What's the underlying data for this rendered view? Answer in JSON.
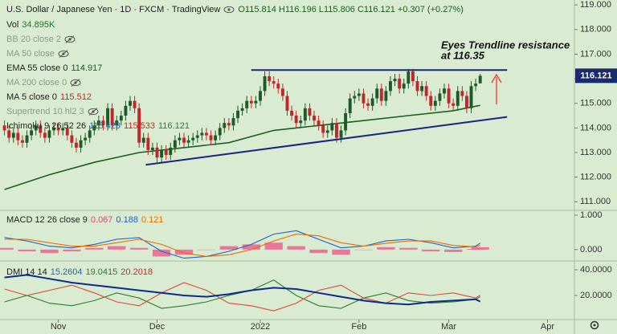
{
  "chart_data": [
    {
      "type": "candlestick",
      "title": "U.S. Dollar / Japanese Yen · 1D · FXCM · TradingView",
      "ohlc_label": "O115.814 H116.196 L115.806 C116.121 +0.307 (+0.27%)",
      "legend": [
        {
          "label": "Vol",
          "values": [
            "34.895K"
          ],
          "colors": [
            "#1b7a2e"
          ]
        },
        {
          "label": "BB 20 close 2",
          "hidden": true
        },
        {
          "label": "MA 50 close",
          "hidden": true
        },
        {
          "label": "EMA 55 close 0",
          "values": [
            114.917
          ],
          "colors": [
            "#1b5e20"
          ]
        },
        {
          "label": "MA 200 close 0",
          "hidden": true
        },
        {
          "label": "MA 5 close 0",
          "values": [
            115.512
          ],
          "colors": [
            "#c62828"
          ]
        },
        {
          "label": "Supertrend 10 hl2 3",
          "hidden": true
        },
        {
          "label": "Ichimoku 9 26 52 26",
          "values": [
            115.423,
            115.533,
            116.121
          ],
          "colors": [
            "#1e63c4",
            "#c62828",
            "#2e7d32"
          ]
        }
      ],
      "annotation": [
        "Eyes Trendline resistance",
        "at 116.35"
      ],
      "colors": {
        "up": "#1d5a27",
        "down": "#c0272d"
      },
      "open": [
        114.1,
        113.9,
        113.6,
        113.8,
        113.5,
        113.4,
        113.7,
        113.9,
        114.1,
        113.8,
        113.6,
        113.9,
        114.0,
        113.9,
        114.0,
        113.7,
        113.4,
        113.2,
        113.5,
        113.6,
        113.9,
        114.1,
        114.3,
        114.1,
        114.8,
        114.1,
        114.3,
        114.5,
        114.9,
        115.1,
        114.8,
        113.4,
        113.6,
        113.1,
        113.2,
        112.8,
        113.1,
        112.9,
        113.2,
        113.5,
        113.6,
        113.4,
        113.5,
        113.6,
        113.7,
        113.8,
        113.7,
        113.5,
        113.7,
        114.0,
        114.2,
        114.1,
        114.4,
        114.7,
        114.8,
        115.1,
        115.0,
        115.1,
        115.5,
        116.1,
        115.9,
        115.8,
        115.6,
        115.3,
        114.7,
        114.5,
        114.2,
        114.3,
        114.8,
        114.5,
        114.3,
        114.1,
        113.8,
        113.9,
        114.2,
        113.6,
        113.9,
        114.6,
        115.2,
        115.3,
        115.4,
        115.0,
        114.9,
        115.2,
        115.6,
        115.1,
        115.5,
        115.9,
        116.0,
        115.6,
        115.8,
        116.3,
        115.9,
        115.5,
        115.7,
        115.3,
        114.9,
        115.1,
        115.4,
        115.6,
        115.0,
        114.9,
        115.5,
        115.3,
        114.8,
        115.7,
        115.814
      ],
      "high": [
        114.3,
        114.1,
        114.0,
        114.0,
        113.7,
        113.9,
        114.1,
        114.3,
        114.3,
        114.0,
        114.1,
        114.2,
        114.2,
        114.2,
        114.2,
        113.9,
        113.6,
        113.7,
        113.8,
        114.1,
        114.3,
        114.5,
        114.5,
        115.0,
        115.0,
        114.5,
        114.7,
        115.1,
        115.3,
        115.3,
        115.0,
        113.8,
        113.8,
        113.4,
        113.4,
        113.3,
        113.3,
        113.4,
        113.7,
        113.8,
        113.8,
        113.7,
        113.8,
        113.9,
        114.0,
        114.0,
        113.9,
        113.9,
        114.2,
        114.4,
        114.4,
        114.6,
        114.9,
        115.0,
        115.3,
        115.3,
        115.3,
        115.7,
        116.3,
        116.3,
        116.1,
        116.0,
        115.8,
        115.5,
        114.9,
        114.7,
        114.5,
        115.0,
        115.0,
        114.7,
        114.5,
        114.3,
        114.1,
        114.4,
        114.4,
        114.1,
        114.8,
        115.4,
        115.5,
        115.6,
        115.6,
        115.2,
        115.4,
        115.8,
        115.8,
        115.7,
        116.1,
        116.2,
        116.2,
        116.0,
        116.4,
        116.4,
        116.1,
        115.9,
        115.9,
        115.5,
        115.3,
        115.6,
        115.8,
        115.8,
        115.2,
        115.7,
        115.7,
        115.5,
        115.9,
        116.0,
        116.196
      ],
      "low": [
        113.7,
        113.4,
        113.4,
        113.3,
        113.2,
        113.2,
        113.5,
        113.7,
        113.6,
        113.4,
        113.4,
        113.7,
        113.7,
        113.7,
        113.5,
        113.2,
        113.0,
        113.0,
        113.3,
        113.4,
        113.7,
        113.9,
        113.9,
        113.9,
        113.9,
        113.9,
        114.1,
        114.3,
        114.7,
        114.6,
        113.2,
        113.2,
        112.9,
        112.9,
        112.6,
        112.6,
        112.7,
        112.7,
        113.0,
        113.3,
        113.2,
        113.2,
        113.3,
        113.4,
        113.5,
        113.5,
        113.3,
        113.3,
        113.5,
        113.8,
        113.9,
        113.9,
        114.2,
        114.5,
        114.6,
        114.8,
        114.8,
        114.9,
        115.3,
        115.7,
        115.6,
        115.4,
        115.1,
        114.5,
        114.3,
        114.0,
        114.0,
        114.1,
        114.3,
        114.1,
        113.9,
        113.6,
        113.6,
        113.7,
        113.4,
        113.4,
        113.7,
        114.4,
        115.0,
        115.1,
        114.8,
        114.7,
        114.7,
        115.0,
        114.9,
        114.9,
        115.3,
        115.7,
        115.4,
        115.4,
        115.6,
        115.7,
        115.3,
        115.3,
        115.1,
        114.7,
        114.7,
        114.9,
        115.2,
        114.8,
        114.7,
        114.7,
        115.1,
        114.6,
        114.6,
        115.5,
        115.806
      ],
      "close": [
        113.9,
        113.6,
        113.8,
        113.5,
        113.4,
        113.7,
        113.9,
        114.1,
        113.8,
        113.6,
        113.9,
        114.0,
        113.9,
        114.0,
        113.7,
        113.4,
        113.2,
        113.5,
        113.6,
        113.9,
        114.1,
        114.3,
        114.1,
        114.8,
        114.1,
        114.3,
        114.5,
        114.9,
        115.1,
        114.8,
        113.4,
        113.6,
        113.1,
        113.2,
        112.8,
        113.1,
        112.9,
        113.2,
        113.5,
        113.6,
        113.4,
        113.5,
        113.6,
        113.7,
        113.8,
        113.7,
        113.5,
        113.7,
        114.0,
        114.2,
        114.1,
        114.4,
        114.7,
        114.8,
        115.1,
        115.0,
        115.1,
        115.5,
        116.1,
        115.9,
        115.8,
        115.6,
        115.3,
        114.7,
        114.5,
        114.2,
        114.3,
        114.8,
        114.5,
        114.3,
        114.1,
        113.8,
        113.9,
        114.2,
        113.6,
        113.9,
        114.6,
        115.2,
        115.3,
        115.4,
        115.0,
        114.9,
        115.2,
        115.6,
        115.1,
        115.5,
        115.9,
        116.0,
        115.6,
        115.8,
        116.3,
        115.9,
        115.5,
        115.7,
        115.3,
        114.9,
        115.1,
        115.4,
        115.6,
        115.0,
        114.9,
        115.5,
        115.3,
        114.8,
        115.7,
        115.8,
        116.121
      ],
      "overlays": [
        {
          "color": "#1b5e20",
          "x": [
            0,
            10,
            20,
            30,
            40,
            50,
            60,
            70,
            80,
            90,
            100,
            106
          ],
          "values": [
            111.5,
            112.1,
            112.6,
            113.0,
            113.2,
            113.4,
            113.9,
            114.1,
            114.3,
            114.5,
            114.7,
            114.917
          ]
        }
      ],
      "trendlines": [
        {
          "color": "#1a237e",
          "x": [
            55,
            112
          ],
          "values": [
            116.35,
            116.35
          ]
        },
        {
          "color": "#1a237e",
          "x": [
            31.5,
            112
          ],
          "values": [
            112.5,
            114.45
          ]
        }
      ],
      "xlim": [
        -1,
        127
      ],
      "xticks": [
        {
          "value": 12,
          "label": "Nov"
        },
        {
          "value": 34,
          "label": "Dec"
        },
        {
          "value": 57,
          "label": "2022"
        },
        {
          "value": 79,
          "label": "Feb"
        },
        {
          "value": 99,
          "label": "Mar"
        },
        {
          "value": 121,
          "label": "Apr"
        }
      ],
      "ylim": [
        110.65,
        119.2
      ],
      "yticks": [
        {
          "value": 119,
          "label": "119.000"
        },
        {
          "value": 118,
          "label": "118.000"
        },
        {
          "value": 117,
          "label": "117.000"
        },
        {
          "value": 116,
          "label": "116.000"
        },
        {
          "value": 115,
          "label": "115.000"
        },
        {
          "value": 114,
          "label": "114.000"
        },
        {
          "value": 113,
          "label": "113.000"
        },
        {
          "value": 112,
          "label": "112.000"
        },
        {
          "value": 111,
          "label": "111.000"
        }
      ]
    },
    {
      "type": "line",
      "legend": [
        {
          "label": "MACD 12 26 close 9",
          "values": [
            0.067,
            0.188,
            0.121
          ],
          "colors": [
            "#e0407a",
            "#1e63c4",
            "#ef6c00"
          ]
        }
      ],
      "x": [
        0,
        5,
        10,
        15,
        20,
        25,
        30,
        35,
        40,
        45,
        50,
        55,
        60,
        65,
        70,
        75,
        80,
        85,
        90,
        95,
        100,
        105,
        106
      ],
      "series": [
        {
          "style": "histogram",
          "color": "#ec5a8c",
          "values": [
            0.05,
            -0.05,
            -0.1,
            -0.05,
            0.05,
            0.1,
            0.05,
            -0.2,
            -0.15,
            0.0,
            0.1,
            0.15,
            0.2,
            0.1,
            -0.1,
            -0.15,
            0.0,
            0.07,
            0.05,
            -0.05,
            -0.07,
            0.02,
            0.067
          ]
        },
        {
          "color": "#1e63c4",
          "values": [
            0.35,
            0.25,
            0.1,
            0.05,
            0.15,
            0.3,
            0.35,
            -0.05,
            -0.25,
            -0.2,
            -0.05,
            0.15,
            0.45,
            0.55,
            0.3,
            0.05,
            0.1,
            0.25,
            0.3,
            0.2,
            0.05,
            0.1,
            0.188
          ]
        },
        {
          "color": "#ef6c00",
          "values": [
            0.3,
            0.3,
            0.2,
            0.1,
            0.1,
            0.2,
            0.3,
            0.15,
            -0.1,
            -0.2,
            -0.15,
            0.0,
            0.25,
            0.45,
            0.4,
            0.2,
            0.1,
            0.18,
            0.25,
            0.25,
            0.12,
            0.08,
            0.121
          ]
        }
      ],
      "xlim": [
        -1,
        127
      ],
      "ylim": [
        -0.33,
        1.14
      ],
      "yticks": [
        {
          "value": 1,
          "label": "1.000"
        },
        {
          "value": 0,
          "label": "0.000"
        }
      ]
    },
    {
      "type": "line",
      "legend": [
        {
          "label": "DMI 14 14",
          "values": [
            15.2604,
            19.0415,
            20.2018
          ],
          "colors": [
            "#1e63c4",
            "#2e7d32",
            "#c62828"
          ]
        }
      ],
      "x": [
        0,
        5,
        10,
        15,
        20,
        25,
        30,
        35,
        40,
        45,
        50,
        55,
        60,
        65,
        70,
        75,
        80,
        85,
        90,
        95,
        100,
        105,
        106
      ],
      "series": [
        {
          "color": "#2e7d32",
          "values": [
            15,
            20,
            14,
            12,
            16,
            22,
            18,
            10,
            12,
            15,
            20,
            24,
            32,
            20,
            12,
            10,
            18,
            22,
            16,
            14,
            15,
            17,
            19.0415
          ]
        },
        {
          "color": "#d84a3a",
          "values": [
            25,
            20,
            24,
            28,
            22,
            15,
            12,
            22,
            30,
            24,
            14,
            12,
            8,
            14,
            24,
            28,
            18,
            14,
            22,
            20,
            22,
            18,
            20.2018
          ]
        },
        {
          "color": "#0d2a8a",
          "width": 2,
          "values": [
            34,
            36,
            33,
            30,
            28,
            26,
            24,
            22,
            20,
            19,
            21,
            24,
            26,
            25,
            22,
            19,
            16,
            14,
            13,
            15,
            16,
            17,
            15.2604
          ]
        }
      ],
      "xlim": [
        -1,
        127
      ],
      "ylim": [
        1.25,
        46.9
      ],
      "yticks": [
        {
          "value": 40,
          "label": "40.0000"
        },
        {
          "value": 20,
          "label": "20.0000"
        }
      ]
    }
  ]
}
